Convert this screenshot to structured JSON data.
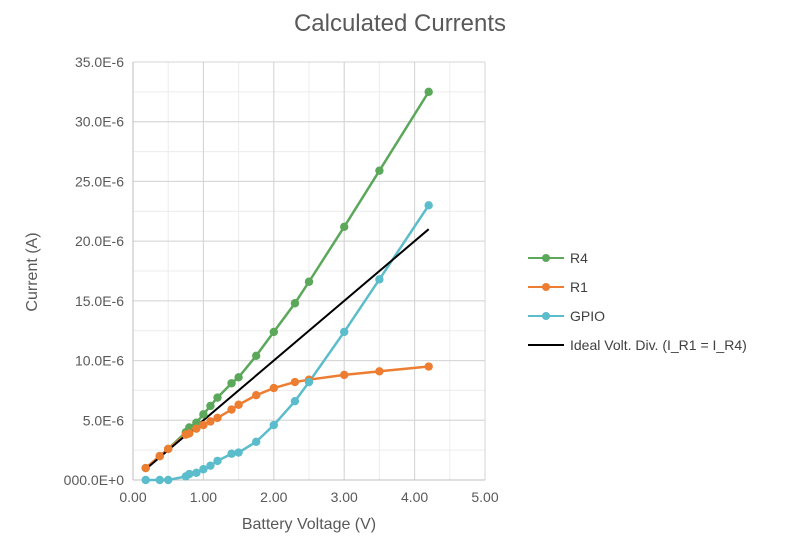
{
  "chart_data": {
    "type": "scatter",
    "title": "Calculated Currents",
    "xlabel": "Battery Voltage (V)",
    "ylabel": "Current (A)",
    "xlim": [
      0,
      5
    ],
    "ylim": [
      0,
      3.5e-05
    ],
    "x_ticks": [
      0,
      1,
      2,
      3,
      4,
      5
    ],
    "x_tick_labels": [
      "0.00",
      "1.00",
      "2.00",
      "3.00",
      "4.00",
      "5.00"
    ],
    "y_ticks": [
      0,
      5e-06,
      1e-05,
      1.5e-05,
      2e-05,
      2.5e-05,
      3e-05,
      3.5e-05
    ],
    "y_tick_labels": [
      "000.0E+0",
      "5.0E-6",
      "10.0E-6",
      "15.0E-6",
      "20.0E-6",
      "25.0E-6",
      "30.0E-6",
      "35.0E-6"
    ],
    "grid": true,
    "legend_position": "right",
    "series": [
      {
        "name": "R4",
        "color": "#5BA85B",
        "markers": true,
        "points": [
          [
            0.18,
            1e-06
          ],
          [
            0.38,
            2e-06
          ],
          [
            0.5,
            2.6e-06
          ],
          [
            0.75,
            4e-06
          ],
          [
            0.8,
            4.4e-06
          ],
          [
            0.9,
            4.8e-06
          ],
          [
            1.0,
            5.5e-06
          ],
          [
            1.1,
            6.2e-06
          ],
          [
            1.2,
            6.9e-06
          ],
          [
            1.4,
            8.1e-06
          ],
          [
            1.5,
            8.6e-06
          ],
          [
            1.75,
            1.04e-05
          ],
          [
            2.0,
            1.24e-05
          ],
          [
            2.3,
            1.48e-05
          ],
          [
            2.5,
            1.66e-05
          ],
          [
            3.0,
            2.12e-05
          ],
          [
            3.5,
            2.59e-05
          ],
          [
            4.2,
            3.25e-05
          ]
        ]
      },
      {
        "name": "R1",
        "color": "#ED7D31",
        "markers": true,
        "points": [
          [
            0.18,
            1e-06
          ],
          [
            0.38,
            2e-06
          ],
          [
            0.5,
            2.6e-06
          ],
          [
            0.75,
            3.8e-06
          ],
          [
            0.8,
            3.9e-06
          ],
          [
            0.9,
            4.3e-06
          ],
          [
            1.0,
            4.6e-06
          ],
          [
            1.1,
            4.9e-06
          ],
          [
            1.2,
            5.2e-06
          ],
          [
            1.4,
            5.9e-06
          ],
          [
            1.5,
            6.3e-06
          ],
          [
            1.75,
            7.1e-06
          ],
          [
            2.0,
            7.7e-06
          ],
          [
            2.3,
            8.2e-06
          ],
          [
            2.5,
            8.4e-06
          ],
          [
            3.0,
            8.8e-06
          ],
          [
            3.5,
            9.1e-06
          ],
          [
            4.2,
            9.5e-06
          ]
        ]
      },
      {
        "name": "GPIO",
        "color": "#5BBCCB",
        "markers": true,
        "points": [
          [
            0.18,
            0.0
          ],
          [
            0.38,
            0.0
          ],
          [
            0.5,
            0.0
          ],
          [
            0.75,
            3e-07
          ],
          [
            0.8,
            5e-07
          ],
          [
            0.9,
            6e-07
          ],
          [
            1.0,
            9e-07
          ],
          [
            1.1,
            1.2e-06
          ],
          [
            1.2,
            1.6e-06
          ],
          [
            1.4,
            2.2e-06
          ],
          [
            1.5,
            2.3e-06
          ],
          [
            1.75,
            3.2e-06
          ],
          [
            2.0,
            4.6e-06
          ],
          [
            2.3,
            6.6e-06
          ],
          [
            2.5,
            8.2e-06
          ],
          [
            3.0,
            1.24e-05
          ],
          [
            3.5,
            1.68e-05
          ],
          [
            4.2,
            2.3e-05
          ]
        ]
      },
      {
        "name": "Ideal Volt. Div. (I_R1 = I_R4)",
        "color": "#000000",
        "markers": false,
        "points": [
          [
            0.18,
            9e-07
          ],
          [
            4.2,
            2.1e-05
          ]
        ]
      }
    ]
  }
}
